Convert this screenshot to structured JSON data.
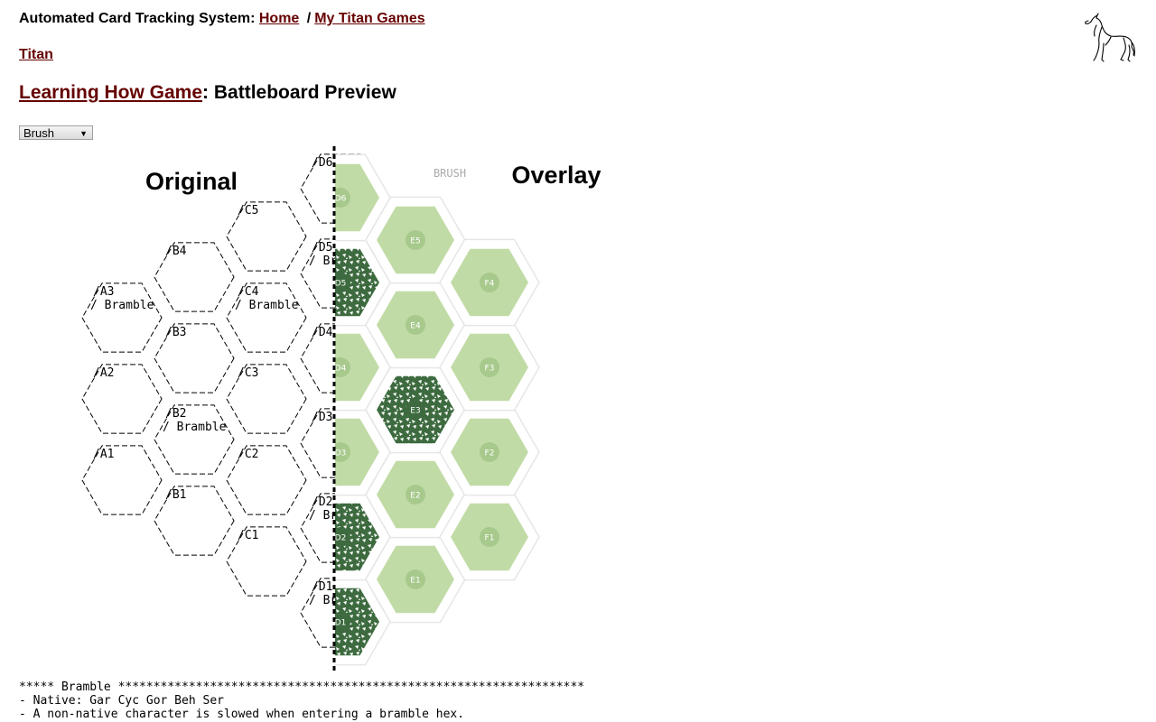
{
  "header": {
    "prefix": "Automated Card Tracking System:",
    "breadcrumbs": [
      {
        "label": "Home"
      },
      {
        "label": "My Titan Games"
      }
    ],
    "separator": "/"
  },
  "section_link": "Titan",
  "page": {
    "game_link": "Learning How Game",
    "title_suffix": ": Battleboard Preview"
  },
  "terrain_select": {
    "selected": "Brush"
  },
  "battleboard": {
    "original_label": "Original",
    "overlay_label": "Overlay",
    "overlay_terrain_label": "BRUSH",
    "colors": {
      "brush": "#c1dba6",
      "brush_dark": "#a7c98c",
      "bramble": "#3d6b3f",
      "hex_outline": "#e6e6e6"
    },
    "ascii_hexes": [
      {
        "id": "A1",
        "terrain": ""
      },
      {
        "id": "A2",
        "terrain": ""
      },
      {
        "id": "A3",
        "terrain": "Bramble"
      },
      {
        "id": "B1",
        "terrain": ""
      },
      {
        "id": "B2",
        "terrain": "Bramble"
      },
      {
        "id": "B3",
        "terrain": ""
      },
      {
        "id": "B4",
        "terrain": ""
      },
      {
        "id": "C1",
        "terrain": ""
      },
      {
        "id": "C2",
        "terrain": ""
      },
      {
        "id": "C3",
        "terrain": ""
      },
      {
        "id": "C4",
        "terrain": "Bramble"
      },
      {
        "id": "C5",
        "terrain": ""
      },
      {
        "id": "D1",
        "terrain": "Bra"
      },
      {
        "id": "D2",
        "terrain": "Bra"
      },
      {
        "id": "D3",
        "terrain": ""
      },
      {
        "id": "D4",
        "terrain": ""
      },
      {
        "id": "D5",
        "terrain": "Bra"
      },
      {
        "id": "D6",
        "terrain": ""
      }
    ],
    "overlay_hexes": [
      {
        "id": "D1",
        "terrain": "bramble"
      },
      {
        "id": "D2",
        "terrain": "bramble"
      },
      {
        "id": "D3",
        "terrain": "brush"
      },
      {
        "id": "D4",
        "terrain": "brush"
      },
      {
        "id": "D5",
        "terrain": "bramble"
      },
      {
        "id": "D6",
        "terrain": "brush"
      },
      {
        "id": "E1",
        "terrain": "brush"
      },
      {
        "id": "E2",
        "terrain": "brush"
      },
      {
        "id": "E3",
        "terrain": "bramble"
      },
      {
        "id": "E4",
        "terrain": "brush"
      },
      {
        "id": "E5",
        "terrain": "brush"
      },
      {
        "id": "F1",
        "terrain": "brush"
      },
      {
        "id": "F2",
        "terrain": "brush"
      },
      {
        "id": "F3",
        "terrain": "brush"
      },
      {
        "id": "F4",
        "terrain": "brush"
      }
    ]
  },
  "legend": {
    "header": "***** Bramble ******************************************************************",
    "lines": [
      "- Native: Gar Cyc Gor Beh Ser",
      "- A non-native character is slowed when entering a bramble hex."
    ]
  }
}
